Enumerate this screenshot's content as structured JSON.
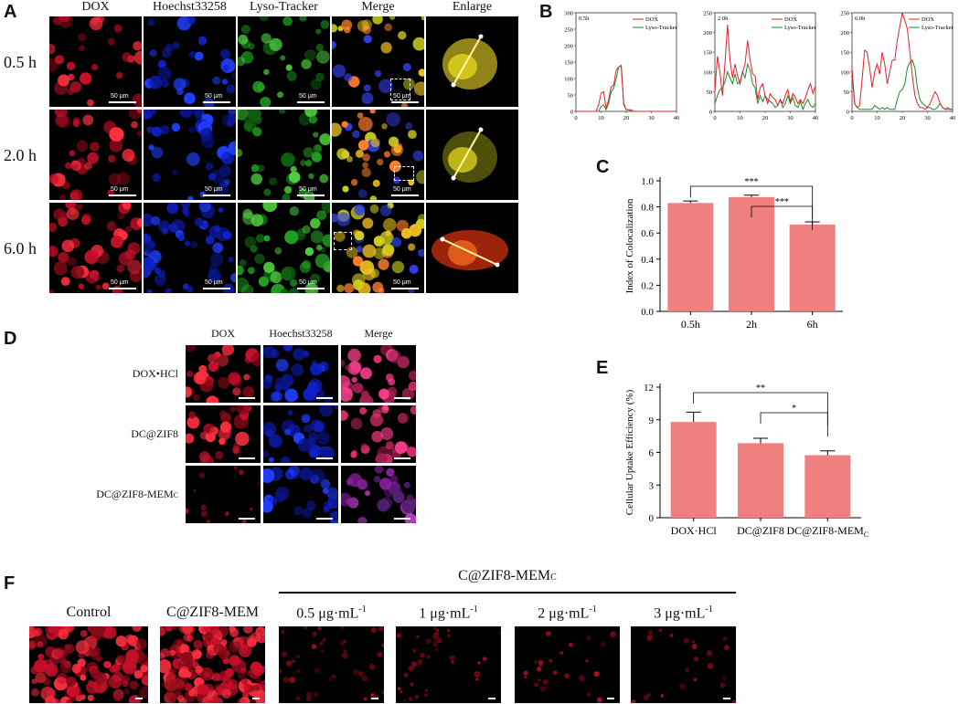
{
  "panel_letters": {
    "a": "A",
    "b": "B",
    "c": "C",
    "d": "D",
    "e": "E",
    "f": "F"
  },
  "panel_a": {
    "columns": [
      "DOX",
      "Hoechst33258",
      "Lyso-Tracker",
      "Merge",
      "Enlarge"
    ],
    "rows": [
      "0.5 h",
      "2.0 h",
      "6.0 h"
    ],
    "scale_label": "50 μm"
  },
  "panel_b": {
    "charts": [
      {
        "time_label": "0.5h",
        "ymax": 300,
        "yticks": [
          0,
          50,
          100,
          150,
          200,
          250,
          300
        ],
        "xticks": [
          0,
          10,
          20,
          30,
          40
        ],
        "dox": [
          0,
          0,
          0,
          0,
          0,
          0,
          0,
          0,
          0,
          20,
          55,
          60,
          10,
          35,
          75,
          80,
          125,
          135,
          140,
          20,
          5,
          5,
          5,
          0,
          0,
          0,
          0,
          0,
          0,
          0,
          0,
          0,
          0,
          0,
          0,
          0,
          0,
          0,
          0,
          0,
          0
        ],
        "lyso": [
          0,
          0,
          0,
          0,
          0,
          0,
          0,
          0,
          0,
          0,
          15,
          20,
          5,
          25,
          60,
          70,
          100,
          135,
          140,
          25,
          5,
          5,
          0,
          0,
          0,
          0,
          0,
          0,
          0,
          0,
          0,
          0,
          0,
          0,
          0,
          0,
          0,
          0,
          0,
          0,
          0
        ]
      },
      {
        "time_label": "2.0h",
        "ymax": 250,
        "yticks": [
          0,
          50,
          100,
          150,
          200,
          250
        ],
        "xticks": [
          0,
          10,
          20,
          30,
          40
        ],
        "dox": [
          50,
          140,
          100,
          40,
          120,
          220,
          130,
          85,
          120,
          90,
          70,
          100,
          120,
          180,
          130,
          95,
          90,
          30,
          60,
          70,
          40,
          20,
          45,
          35,
          30,
          15,
          30,
          20,
          40,
          55,
          25,
          45,
          35,
          20,
          30,
          20,
          35,
          55,
          70,
          45,
          65
        ],
        "lyso": [
          20,
          40,
          55,
          60,
          75,
          100,
          85,
          70,
          95,
          70,
          75,
          100,
          85,
          120,
          105,
          70,
          60,
          20,
          40,
          25,
          40,
          30,
          25,
          20,
          10,
          15,
          30,
          10,
          20,
          40,
          20,
          35,
          15,
          10,
          25,
          5,
          20,
          30,
          15,
          10,
          20
        ]
      },
      {
        "time_label": "6.0h",
        "ymax": 250,
        "yticks": [
          0,
          50,
          100,
          150,
          200,
          250
        ],
        "xticks": [
          0,
          10,
          20,
          30,
          40
        ],
        "dox": [
          110,
          20,
          10,
          15,
          80,
          155,
          150,
          110,
          60,
          100,
          120,
          95,
          150,
          120,
          70,
          100,
          130,
          130,
          180,
          215,
          250,
          230,
          210,
          150,
          90,
          40,
          20,
          10,
          10,
          5,
          10,
          20,
          35,
          50,
          40,
          20,
          10,
          5,
          10,
          5,
          5
        ],
        "lyso": [
          100,
          20,
          10,
          5,
          5,
          5,
          5,
          5,
          5,
          15,
          10,
          5,
          10,
          5,
          10,
          5,
          5,
          5,
          30,
          50,
          55,
          70,
          110,
          125,
          130,
          110,
          60,
          30,
          20,
          15,
          10,
          10,
          5,
          5,
          10,
          20,
          10,
          5,
          5,
          5,
          5
        ]
      }
    ],
    "legend": [
      "DOX",
      "Lyso-Tracker"
    ]
  },
  "chart_data": [
    {
      "type": "line",
      "title": "0.5h",
      "legend": [
        "DOX",
        "Lyso-Tracker"
      ],
      "xlim": [
        0,
        40
      ],
      "ylim": [
        0,
        300
      ],
      "colors": [
        "#e8202a",
        "#1a8a2a"
      ]
    },
    {
      "type": "line",
      "title": "2.0h",
      "legend": [
        "DOX",
        "Lyso-Tracker"
      ],
      "xlim": [
        0,
        40
      ],
      "ylim": [
        0,
        250
      ],
      "colors": [
        "#e8202a",
        "#1a8a2a"
      ]
    },
    {
      "type": "line",
      "title": "6.0h",
      "legend": [
        "DOX",
        "Lyso-Tracker"
      ],
      "xlim": [
        0,
        40
      ],
      "ylim": [
        0,
        250
      ],
      "colors": [
        "#e8202a",
        "#1a8a2a"
      ]
    },
    {
      "type": "bar",
      "categories": [
        "0.5h",
        "2h",
        "6h"
      ],
      "values": [
        0.83,
        0.875,
        0.665
      ],
      "errors": [
        0.015,
        0.015,
        0.02
      ],
      "ylabel": "Index of Colocalization",
      "ylim": [
        0,
        1.0
      ],
      "yticks": [
        "0.0",
        "0.2",
        "0.4",
        "0.6",
        "0.8",
        "1.0"
      ],
      "sig": [
        {
          "from": 0,
          "to": 2,
          "label": "***"
        },
        {
          "from": 1,
          "to": 2,
          "label": "***"
        }
      ],
      "color": "#f08080"
    },
    {
      "type": "bar",
      "categories": [
        "DOX·HCl",
        "DC@ZIF8",
        "DC@ZIF8-MEM"
      ],
      "cat_sub": [
        "",
        "",
        "C"
      ],
      "values": [
        8.8,
        6.85,
        5.75
      ],
      "errors": [
        0.9,
        0.45,
        0.4
      ],
      "ylabel": "Cellular Uptake Efficiency (%)",
      "ylim": [
        0,
        12
      ],
      "yticks": [
        "0",
        "3",
        "6",
        "9",
        "12"
      ],
      "sig": [
        {
          "from": 0,
          "to": 2,
          "label": "**"
        },
        {
          "from": 1,
          "to": 2,
          "label": "*"
        }
      ],
      "color": "#f08080"
    }
  ],
  "panel_d": {
    "columns": [
      "DOX",
      "Hoechst33258",
      "Merge"
    ],
    "rows": [
      {
        "main": "DOX•HCl",
        "sub": ""
      },
      {
        "main": "DC@ZIF8",
        "sub": ""
      },
      {
        "main": "DC@ZIF8-MEM",
        "sub": "C"
      }
    ]
  },
  "panel_f": {
    "group_label_main": "C@ZIF8-MEM",
    "group_label_sub": "C",
    "labels": [
      {
        "main": "Control",
        "sup": ""
      },
      {
        "main": "C@ZIF8-MEM",
        "sup": ""
      },
      {
        "main": "0.5 μg·mL",
        "sup": "-1"
      },
      {
        "main": "1 μg·mL",
        "sup": "-1"
      },
      {
        "main": "2 μg·mL",
        "sup": "-1"
      },
      {
        "main": "3 μg·mL",
        "sup": "-1"
      }
    ]
  },
  "colors": {
    "dox": "#e8202a",
    "lyso": "#1a8a2a",
    "bar": "#f08080"
  }
}
